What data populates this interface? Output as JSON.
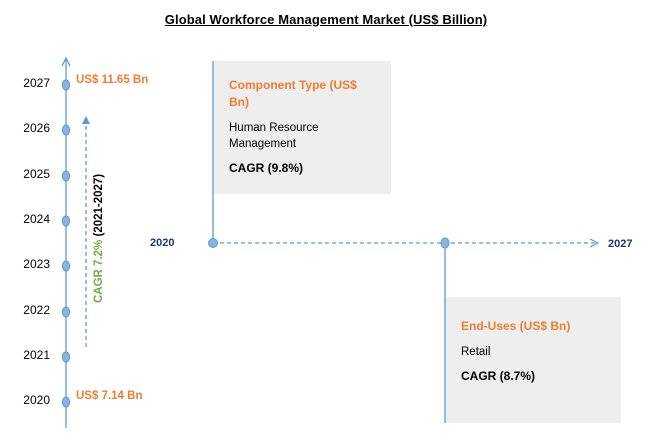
{
  "title": "Global Workforce Management Market (US$ Billion)",
  "timeline": {
    "years": [
      "2027",
      "2026",
      "2025",
      "2024",
      "2023",
      "2022",
      "2021",
      "2020"
    ],
    "top_value": "US$ 11.65 Bn",
    "bottom_value": "US$ 7.14 Bn",
    "cagr_pct": "CAGR 7.2%",
    "cagr_period": "(2021-2027)"
  },
  "horizontal_axis": {
    "start": "2020",
    "end": "2027"
  },
  "component_box": {
    "title_line1": "Component Type (US$",
    "title_line2": "Bn)",
    "segment_line1": "Human Resource",
    "segment_line2": "Management",
    "cagr": "CAGR (9.8%)"
  },
  "enduse_box": {
    "title": "End-Uses (US$ Bn)",
    "segment": "Retail",
    "cagr": "CAGR (8.7%)"
  },
  "colors": {
    "accent_orange": "#ED7D31",
    "cagr_green": "#70AD47",
    "axis_blue": "#5B9BD5",
    "dot_blue": "#8FB1DE",
    "label_navy": "#1F3864",
    "box_gray": "#EEEEEE"
  }
}
